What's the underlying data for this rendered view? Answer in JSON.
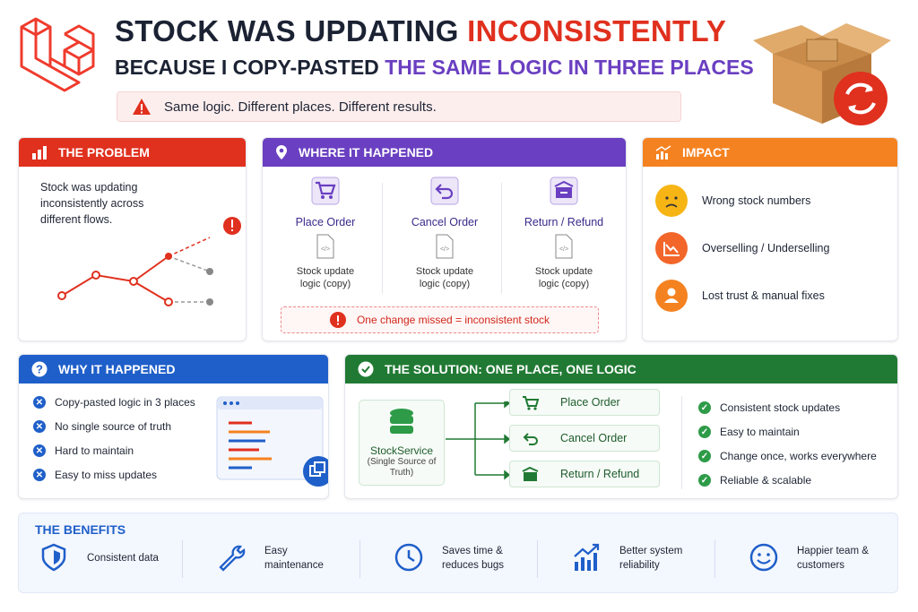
{
  "header": {
    "title_start": "STOCK WAS UPDATING",
    "title_highlight": "INCONSISTENTLY",
    "subtitle_start": "BECAUSE I COPY-PASTED",
    "subtitle_highlight": "THE SAME LOGIC IN THREE PLACES",
    "alert": "Same logic. Different places. Different results."
  },
  "problem": {
    "title": "THE PROBLEM",
    "text": "Stock was updating inconsistently across different flows."
  },
  "where": {
    "title": "WHERE IT HAPPENED",
    "items": [
      {
        "label": "Place Order",
        "note": "Stock update logic (copy)"
      },
      {
        "label": "Cancel Order",
        "note": "Stock update logic (copy)"
      },
      {
        "label": "Return / Refund",
        "note": "Stock update logic (copy)"
      }
    ],
    "warning": "One change missed = inconsistent stock"
  },
  "impact": {
    "title": "IMPACT",
    "items": [
      "Wrong stock numbers",
      "Overselling / Underselling",
      "Lost trust & manual fixes"
    ]
  },
  "why": {
    "title": "WHY IT HAPPENED",
    "items": [
      "Copy-pasted logic in 3 places",
      "No single source of truth",
      "Hard to maintain",
      "Easy to miss updates"
    ]
  },
  "solution": {
    "title": "THE SOLUTION: ONE PLACE, ONE LOGIC",
    "service": "StockService",
    "service_note": "(Single Source of Truth)",
    "flows": [
      "Place Order",
      "Cancel Order",
      "Return / Refund"
    ],
    "benefits": [
      "Consistent stock updates",
      "Easy to maintain",
      "Change once, works everywhere",
      "Reliable & scalable"
    ]
  },
  "benefits": {
    "title": "THE BENEFITS",
    "items": [
      "Consistent data",
      "Easy maintenance",
      "Saves time & reduces bugs",
      "Better system reliability",
      "Happier team & customers"
    ]
  }
}
